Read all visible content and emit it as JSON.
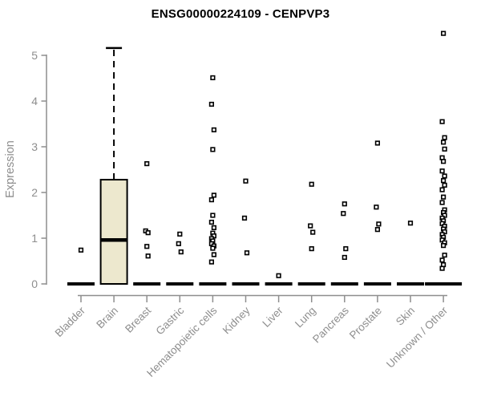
{
  "chart_data": {
    "type": "box",
    "title": "ENSG00000224109 - CENPVP3",
    "ylabel": "Expression",
    "xlabel": "",
    "ylim": [
      0,
      5.5
    ],
    "yticks": [
      0,
      1,
      2,
      3,
      4,
      5
    ],
    "grid": false,
    "legend": "none",
    "categories": [
      "Bladder",
      "Brain",
      "Breast",
      "Gastric",
      "Hematopoietic cells",
      "Kidney",
      "Liver",
      "Lung",
      "Pancreas",
      "Prostate",
      "Skin",
      "Unknown / Other"
    ],
    "boxes": [
      {
        "category": "Bladder",
        "q1": 0,
        "median": 0,
        "q3": 0,
        "whisker_low": 0,
        "whisker_high": 0,
        "outliers": [
          0.74
        ]
      },
      {
        "category": "Brain",
        "q1": 0,
        "median": 0.96,
        "q3": 2.28,
        "whisker_low": 0,
        "whisker_high": 5.16,
        "outliers": []
      },
      {
        "category": "Breast",
        "q1": 0,
        "median": 0,
        "q3": 0,
        "whisker_low": 0,
        "whisker_high": 0,
        "outliers": [
          2.63,
          1.16,
          1.12,
          0.82,
          0.61
        ]
      },
      {
        "category": "Gastric",
        "q1": 0,
        "median": 0,
        "q3": 0,
        "whisker_low": 0,
        "whisker_high": 0,
        "outliers": [
          1.09,
          0.88,
          0.7
        ]
      },
      {
        "category": "Hematopoietic cells",
        "q1": 0,
        "median": 0,
        "q3": 0,
        "whisker_low": 0,
        "whisker_high": 0,
        "outliers": [
          4.51,
          3.93,
          3.37,
          2.94,
          1.94,
          1.84,
          1.5,
          1.35,
          1.23,
          1.11,
          1.05,
          0.99,
          0.94,
          0.88,
          0.83,
          0.78,
          0.64,
          0.48
        ]
      },
      {
        "category": "Kidney",
        "q1": 0,
        "median": 0,
        "q3": 0,
        "whisker_low": 0,
        "whisker_high": 0,
        "outliers": [
          2.25,
          1.44,
          0.68
        ]
      },
      {
        "category": "Liver",
        "q1": 0,
        "median": 0,
        "q3": 0,
        "whisker_low": 0,
        "whisker_high": 0,
        "outliers": [
          0.18
        ]
      },
      {
        "category": "Lung",
        "q1": 0,
        "median": 0,
        "q3": 0,
        "whisker_low": 0,
        "whisker_high": 0,
        "outliers": [
          2.18,
          1.27,
          1.13,
          0.77
        ]
      },
      {
        "category": "Pancreas",
        "q1": 0,
        "median": 0,
        "q3": 0,
        "whisker_low": 0,
        "whisker_high": 0,
        "outliers": [
          1.75,
          1.54,
          0.77,
          0.58
        ]
      },
      {
        "category": "Prostate",
        "q1": 0,
        "median": 0,
        "q3": 0,
        "whisker_low": 0,
        "whisker_high": 0,
        "outliers": [
          3.08,
          1.68,
          1.31,
          1.19
        ]
      },
      {
        "category": "Skin",
        "q1": 0,
        "median": 0,
        "q3": 0,
        "whisker_low": 0,
        "whisker_high": 0,
        "outliers": [
          1.33
        ]
      },
      {
        "category": "Unknown / Other",
        "q1": 0,
        "median": 0,
        "q3": 0,
        "whisker_low": 0,
        "whisker_high": 0,
        "outliers": [
          5.48,
          3.55,
          3.2,
          3.1,
          2.95,
          2.76,
          2.68,
          2.47,
          2.36,
          2.26,
          2.16,
          2.06,
          1.9,
          1.78,
          1.62,
          1.56,
          1.5,
          1.44,
          1.38,
          1.32,
          1.26,
          1.2,
          1.14,
          1.08,
          1.02,
          0.96,
          0.9,
          0.84,
          0.63,
          0.52,
          0.42,
          0.34
        ]
      }
    ],
    "colors": {
      "box_fill": "#EDE8CE",
      "box_stroke": "#000000",
      "median": "#000000",
      "whisker": "#000000",
      "outlier_stroke": "#000000",
      "outlier_fill": "#FFFFFF",
      "axis": "#8E8E8E",
      "tick_label": "#8E8E8E",
      "title": "#000000",
      "background": "#FFFFFF"
    }
  }
}
